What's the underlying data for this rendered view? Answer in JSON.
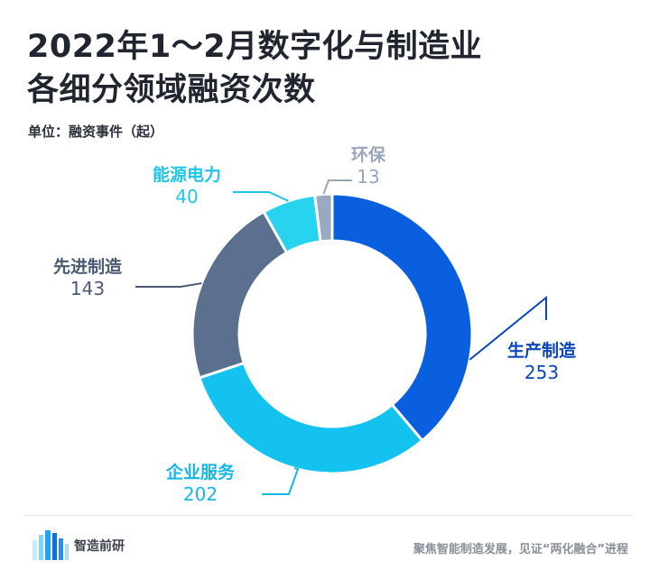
{
  "header": {
    "title_line1": "2022年1～2月数字化与制造业",
    "title_line2": "各细分领域融资次数",
    "unit": "单位：融资事件（起）"
  },
  "footer": {
    "brand": "智造前研",
    "slogan": "聚焦智能制造发展，见证“两化融合”进程"
  },
  "colors": {
    "生产制造": "#0a5fde",
    "企业服务": "#14c2f0",
    "先进制造": "#5b6f8f",
    "能源电力": "#27d3ee",
    "环保": "#9aa9c2",
    "label_生产制造": "#0a47b8",
    "label_企业服务": "#14b7e6",
    "label_先进制造": "#4b5a73",
    "label_能源电力": "#20c6ea",
    "label_环保": "#9aa6bb"
  },
  "chart_data": {
    "type": "pie",
    "variant": "donut",
    "title": "2022年1～2月数字化与制造业各细分领域融资次数",
    "unit": "融资事件（起）",
    "categories": [
      "生产制造",
      "企业服务",
      "先进制造",
      "能源电力",
      "环保"
    ],
    "values": [
      253,
      202,
      143,
      40,
      13
    ]
  }
}
